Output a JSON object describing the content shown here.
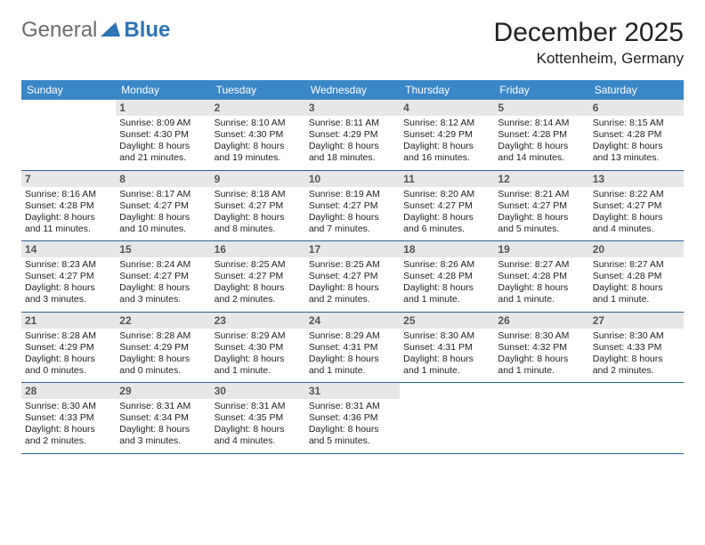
{
  "logo": {
    "general": "General",
    "blue": "Blue"
  },
  "title": "December 2025",
  "location": "Kottenheim, Germany",
  "colors": {
    "header_bg": "#3a87c8",
    "header_text": "#ffffff",
    "daynum_bg": "#e7e7e7",
    "daynum_text": "#555555",
    "week_border": "#2f5f8f",
    "logo_gray": "#6d6d6d",
    "logo_blue": "#2f74b5"
  },
  "weekdays": [
    "Sunday",
    "Monday",
    "Tuesday",
    "Wednesday",
    "Thursday",
    "Friday",
    "Saturday"
  ],
  "weeks": [
    [
      {
        "empty": true
      },
      {
        "num": "1",
        "sunrise": "Sunrise: 8:09 AM",
        "sunset": "Sunset: 4:30 PM",
        "day1": "Daylight: 8 hours",
        "day2": "and 21 minutes."
      },
      {
        "num": "2",
        "sunrise": "Sunrise: 8:10 AM",
        "sunset": "Sunset: 4:30 PM",
        "day1": "Daylight: 8 hours",
        "day2": "and 19 minutes."
      },
      {
        "num": "3",
        "sunrise": "Sunrise: 8:11 AM",
        "sunset": "Sunset: 4:29 PM",
        "day1": "Daylight: 8 hours",
        "day2": "and 18 minutes."
      },
      {
        "num": "4",
        "sunrise": "Sunrise: 8:12 AM",
        "sunset": "Sunset: 4:29 PM",
        "day1": "Daylight: 8 hours",
        "day2": "and 16 minutes."
      },
      {
        "num": "5",
        "sunrise": "Sunrise: 8:14 AM",
        "sunset": "Sunset: 4:28 PM",
        "day1": "Daylight: 8 hours",
        "day2": "and 14 minutes."
      },
      {
        "num": "6",
        "sunrise": "Sunrise: 8:15 AM",
        "sunset": "Sunset: 4:28 PM",
        "day1": "Daylight: 8 hours",
        "day2": "and 13 minutes."
      }
    ],
    [
      {
        "num": "7",
        "sunrise": "Sunrise: 8:16 AM",
        "sunset": "Sunset: 4:28 PM",
        "day1": "Daylight: 8 hours",
        "day2": "and 11 minutes."
      },
      {
        "num": "8",
        "sunrise": "Sunrise: 8:17 AM",
        "sunset": "Sunset: 4:27 PM",
        "day1": "Daylight: 8 hours",
        "day2": "and 10 minutes."
      },
      {
        "num": "9",
        "sunrise": "Sunrise: 8:18 AM",
        "sunset": "Sunset: 4:27 PM",
        "day1": "Daylight: 8 hours",
        "day2": "and 8 minutes."
      },
      {
        "num": "10",
        "sunrise": "Sunrise: 8:19 AM",
        "sunset": "Sunset: 4:27 PM",
        "day1": "Daylight: 8 hours",
        "day2": "and 7 minutes."
      },
      {
        "num": "11",
        "sunrise": "Sunrise: 8:20 AM",
        "sunset": "Sunset: 4:27 PM",
        "day1": "Daylight: 8 hours",
        "day2": "and 6 minutes."
      },
      {
        "num": "12",
        "sunrise": "Sunrise: 8:21 AM",
        "sunset": "Sunset: 4:27 PM",
        "day1": "Daylight: 8 hours",
        "day2": "and 5 minutes."
      },
      {
        "num": "13",
        "sunrise": "Sunrise: 8:22 AM",
        "sunset": "Sunset: 4:27 PM",
        "day1": "Daylight: 8 hours",
        "day2": "and 4 minutes."
      }
    ],
    [
      {
        "num": "14",
        "sunrise": "Sunrise: 8:23 AM",
        "sunset": "Sunset: 4:27 PM",
        "day1": "Daylight: 8 hours",
        "day2": "and 3 minutes."
      },
      {
        "num": "15",
        "sunrise": "Sunrise: 8:24 AM",
        "sunset": "Sunset: 4:27 PM",
        "day1": "Daylight: 8 hours",
        "day2": "and 3 minutes."
      },
      {
        "num": "16",
        "sunrise": "Sunrise: 8:25 AM",
        "sunset": "Sunset: 4:27 PM",
        "day1": "Daylight: 8 hours",
        "day2": "and 2 minutes."
      },
      {
        "num": "17",
        "sunrise": "Sunrise: 8:25 AM",
        "sunset": "Sunset: 4:27 PM",
        "day1": "Daylight: 8 hours",
        "day2": "and 2 minutes."
      },
      {
        "num": "18",
        "sunrise": "Sunrise: 8:26 AM",
        "sunset": "Sunset: 4:28 PM",
        "day1": "Daylight: 8 hours",
        "day2": "and 1 minute."
      },
      {
        "num": "19",
        "sunrise": "Sunrise: 8:27 AM",
        "sunset": "Sunset: 4:28 PM",
        "day1": "Daylight: 8 hours",
        "day2": "and 1 minute."
      },
      {
        "num": "20",
        "sunrise": "Sunrise: 8:27 AM",
        "sunset": "Sunset: 4:28 PM",
        "day1": "Daylight: 8 hours",
        "day2": "and 1 minute."
      }
    ],
    [
      {
        "num": "21",
        "sunrise": "Sunrise: 8:28 AM",
        "sunset": "Sunset: 4:29 PM",
        "day1": "Daylight: 8 hours",
        "day2": "and 0 minutes."
      },
      {
        "num": "22",
        "sunrise": "Sunrise: 8:28 AM",
        "sunset": "Sunset: 4:29 PM",
        "day1": "Daylight: 8 hours",
        "day2": "and 0 minutes."
      },
      {
        "num": "23",
        "sunrise": "Sunrise: 8:29 AM",
        "sunset": "Sunset: 4:30 PM",
        "day1": "Daylight: 8 hours",
        "day2": "and 1 minute."
      },
      {
        "num": "24",
        "sunrise": "Sunrise: 8:29 AM",
        "sunset": "Sunset: 4:31 PM",
        "day1": "Daylight: 8 hours",
        "day2": "and 1 minute."
      },
      {
        "num": "25",
        "sunrise": "Sunrise: 8:30 AM",
        "sunset": "Sunset: 4:31 PM",
        "day1": "Daylight: 8 hours",
        "day2": "and 1 minute."
      },
      {
        "num": "26",
        "sunrise": "Sunrise: 8:30 AM",
        "sunset": "Sunset: 4:32 PM",
        "day1": "Daylight: 8 hours",
        "day2": "and 1 minute."
      },
      {
        "num": "27",
        "sunrise": "Sunrise: 8:30 AM",
        "sunset": "Sunset: 4:33 PM",
        "day1": "Daylight: 8 hours",
        "day2": "and 2 minutes."
      }
    ],
    [
      {
        "num": "28",
        "sunrise": "Sunrise: 8:30 AM",
        "sunset": "Sunset: 4:33 PM",
        "day1": "Daylight: 8 hours",
        "day2": "and 2 minutes."
      },
      {
        "num": "29",
        "sunrise": "Sunrise: 8:31 AM",
        "sunset": "Sunset: 4:34 PM",
        "day1": "Daylight: 8 hours",
        "day2": "and 3 minutes."
      },
      {
        "num": "30",
        "sunrise": "Sunrise: 8:31 AM",
        "sunset": "Sunset: 4:35 PM",
        "day1": "Daylight: 8 hours",
        "day2": "and 4 minutes."
      },
      {
        "num": "31",
        "sunrise": "Sunrise: 8:31 AM",
        "sunset": "Sunset: 4:36 PM",
        "day1": "Daylight: 8 hours",
        "day2": "and 5 minutes."
      },
      {
        "empty": true
      },
      {
        "empty": true
      },
      {
        "empty": true
      }
    ]
  ]
}
